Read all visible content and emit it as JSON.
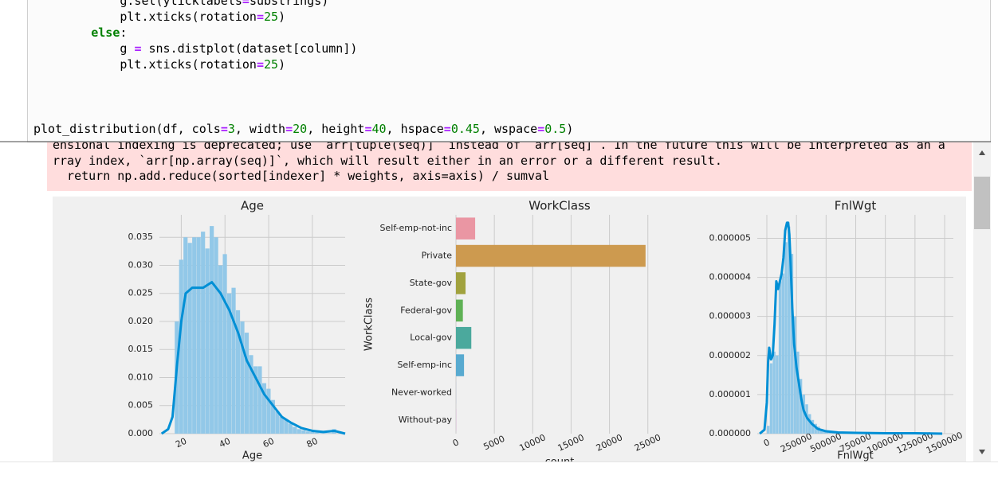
{
  "code": {
    "lines": [
      "            g.set(yticklabels=substrings)",
      "            plt.xticks(rotation=25)",
      "        else:",
      "            g = sns.distplot(dataset[column])",
      "            plt.xticks(rotation=25)"
    ],
    "call": "plot_distribution(df, cols=3, width=20, height=40, hspace=0.45, wspace=0.5)"
  },
  "output": {
    "warning": [
      "ensional indexing is deprecated; use `arr[tuple(seq)]` instead of `arr[seq]`. In the future this will be interpreted as an a",
      "rray index, `arr[np.array(seq)]`, which will result either in an error or a different result.",
      "  return np.add.reduce(sorted[indexer] * weights, axis=axis) / sumval"
    ]
  },
  "chart_data": [
    {
      "type": "histogram",
      "title": "Age",
      "xlabel": "Age",
      "bins": [
        17,
        19,
        21,
        23,
        25,
        27,
        29,
        31,
        33,
        35,
        37,
        39,
        41,
        43,
        45,
        47,
        49,
        51,
        53,
        55,
        57,
        59,
        61,
        63,
        65,
        67,
        69,
        71,
        73,
        75,
        77,
        79,
        81,
        83,
        85,
        87,
        89,
        91
      ],
      "values": [
        0.02,
        0.031,
        0.035,
        0.034,
        0.035,
        0.035,
        0.036,
        0.033,
        0.037,
        0.035,
        0.03,
        0.032,
        0.025,
        0.026,
        0.022,
        0.02,
        0.018,
        0.014,
        0.012,
        0.012,
        0.009,
        0.008,
        0.006,
        0.004,
        0.003,
        0.0025,
        0.0018,
        0.0012,
        0.0008,
        0.0006,
        0.0004,
        0.0003,
        0.0002,
        0.0001,
        0.0001,
        0.0001,
        0.0008
      ],
      "kde": {
        "x": [
          11,
          14,
          16,
          18,
          20,
          22,
          25,
          30,
          34,
          38,
          42,
          46,
          50,
          54,
          58,
          62,
          66,
          70,
          75,
          80,
          85,
          90,
          95
        ],
        "values": [
          0,
          0.0008,
          0.003,
          0.012,
          0.02,
          0.025,
          0.026,
          0.026,
          0.027,
          0.025,
          0.022,
          0.018,
          0.013,
          0.01,
          0.007,
          0.005,
          0.003,
          0.002,
          0.001,
          0.0005,
          0.0003,
          0.0005,
          0
        ]
      },
      "bar_color": "#92c8e8",
      "line_color": "#008fd5",
      "xlim": [
        10,
        95
      ],
      "ylim": [
        0,
        0.039
      ],
      "xticks": [
        20,
        40,
        60,
        80
      ],
      "yticks": [
        {
          "value": 0,
          "label": "0.000"
        },
        {
          "value": 0.005,
          "label": "0.005"
        },
        {
          "value": 0.01,
          "label": "0.010"
        },
        {
          "value": 0.015,
          "label": "0.015"
        },
        {
          "value": 0.02,
          "label": "0.020"
        },
        {
          "value": 0.025,
          "label": "0.025"
        },
        {
          "value": 0.03,
          "label": "0.030"
        },
        {
          "value": 0.035,
          "label": "0.035"
        }
      ],
      "grid": true
    },
    {
      "type": "barh",
      "title": "WorkClass",
      "xlabel": "count",
      "ylabel": "WorkClass",
      "categories": [
        "Self-emp-not-inc",
        "Private",
        "State-gov",
        "Federal-gov",
        "Local-gov",
        "Self-emp-inc",
        "Never-worked",
        "Without-pay"
      ],
      "values": [
        2500,
        24700,
        1250,
        900,
        2000,
        1050,
        10,
        20
      ],
      "colors": [
        "#ea96a3",
        "#cd9a4f",
        "#a1a23e",
        "#5fb155",
        "#4ba99d",
        "#58aad0",
        "#9ba8e3",
        "#e094dd"
      ],
      "xlim": [
        0,
        27000
      ],
      "xticks": [
        0,
        5000,
        10000,
        15000,
        20000,
        25000
      ],
      "grid": true
    },
    {
      "type": "histogram",
      "title": "FnlWgt",
      "xlabel": "FnlWgt",
      "bins": [
        0,
        25000,
        50000,
        75000,
        100000,
        125000,
        150000,
        175000,
        200000,
        225000,
        250000,
        275000,
        300000,
        325000,
        350000,
        375000,
        400000,
        425000,
        450000,
        475000,
        500000,
        525000,
        550000,
        575000,
        600000,
        625000,
        650000,
        675000,
        700000,
        725000,
        750000
      ],
      "values": [
        2e-07,
        1.8e-06,
        2.1e-06,
        2e-06,
        3.9e-06,
        4.1e-06,
        4.9e-06,
        5.3e-06,
        4.6e-06,
        3e-06,
        2.1e-06,
        1.4e-06,
        1e-06,
        7.5e-07,
        5e-07,
        3.5e-07,
        2.5e-07,
        1.8e-07,
        1.2e-07,
        9e-08,
        6e-08,
        5e-08,
        4e-08,
        3e-08,
        2.5e-08,
        2e-08,
        1.5e-08,
        1.2e-08,
        1e-08,
        8e-09
      ],
      "kde": {
        "x": [
          -60000,
          -20000,
          0,
          10000,
          20000,
          35000,
          50000,
          65000,
          80000,
          95000,
          110000,
          125000,
          140000,
          155000,
          170000,
          180000,
          190000,
          200000,
          215000,
          230000,
          250000,
          270000,
          290000,
          310000,
          340000,
          380000,
          430000,
          500000,
          600000,
          750000,
          1000000,
          1250000,
          1480000
        ],
        "values": [
          0,
          1e-07,
          8e-07,
          1.8e-06,
          2.2e-06,
          1.9e-06,
          2e-06,
          2.8e-06,
          3.9e-06,
          3.7e-06,
          3.9e-06,
          4.1e-06,
          4.5e-06,
          5.2e-06,
          5.4e-06,
          5.4e-06,
          5.1e-06,
          4.4e-06,
          3.2e-06,
          2.3e-06,
          1.7e-06,
          1.3e-06,
          9e-07,
          6e-07,
          4e-07,
          2.5e-07,
          1.2e-07,
          6e-08,
          3e-08,
          2e-08,
          1e-08,
          1e-08,
          0
        ]
      },
      "bar_color": "#92c8e8",
      "line_color": "#008fd5",
      "xlim": [
        -80700,
        1573700
      ],
      "ylim": [
        0,
        5.6e-06
      ],
      "xticks": [
        0,
        250000,
        500000,
        750000,
        1000000,
        1250000,
        1500000
      ],
      "yticks": [
        {
          "value": 0,
          "label": "0.000000"
        },
        {
          "value": 1e-06,
          "label": "0.000001"
        },
        {
          "value": 2e-06,
          "label": "0.000002"
        },
        {
          "value": 3e-06,
          "label": "0.000003"
        },
        {
          "value": 4e-06,
          "label": "0.000004"
        },
        {
          "value": 5e-06,
          "label": "0.000005"
        }
      ],
      "grid": true
    }
  ]
}
